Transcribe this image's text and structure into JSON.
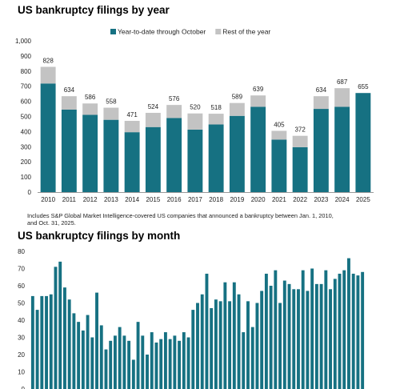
{
  "chart_data": [
    {
      "type": "bar",
      "stacked": true,
      "title": "US bankruptcy filings by year",
      "categories": [
        "2010",
        "2011",
        "2012",
        "2013",
        "2014",
        "2015",
        "2016",
        "2017",
        "2018",
        "2019",
        "2020",
        "2021",
        "2022",
        "2023",
        "2024",
        "2025"
      ],
      "series": [
        {
          "name": "Year-to-date through October",
          "color": "#167182",
          "values": [
            718,
            545,
            511,
            478,
            396,
            430,
            490,
            413,
            447,
            504,
            564,
            347,
            297,
            550,
            564,
            655
          ]
        },
        {
          "name": "Rest of the year",
          "color": "#c3c3c3",
          "values": [
            110,
            89,
            75,
            80,
            75,
            94,
            86,
            107,
            71,
            85,
            75,
            58,
            75,
            84,
            123,
            0
          ]
        }
      ],
      "totals": [
        828,
        634,
        586,
        558,
        471,
        524,
        576,
        520,
        518,
        589,
        639,
        405,
        372,
        634,
        687,
        655
      ],
      "ylim": [
        0,
        1000
      ],
      "yticks": [
        "0",
        "100",
        "200",
        "300",
        "400",
        "500",
        "600",
        "700",
        "800",
        "900",
        "1,000"
      ],
      "legend": "top-center",
      "grid": false,
      "note": [
        "Includes S&P Global Market Intelligence-covered US companies that announced a bankruptcy between Jan. 1, 2010,",
        "and Oct. 31, 2025."
      ]
    },
    {
      "type": "bar",
      "title": "US bankruptcy filings by month",
      "color": "#167182",
      "ylim": [
        0,
        80
      ],
      "yticks": [
        "0",
        "10",
        "20",
        "30",
        "40",
        "50",
        "60",
        "70",
        "80"
      ],
      "grid": false,
      "values": [
        54,
        46,
        54,
        54,
        55,
        71,
        74,
        59,
        52,
        44,
        39,
        34,
        43,
        30,
        56,
        37,
        23,
        28,
        31,
        36,
        31,
        28,
        17,
        39,
        31,
        20,
        33,
        27,
        29,
        33,
        29,
        31,
        28,
        33,
        30,
        46,
        50,
        55,
        67,
        47,
        52,
        51,
        62,
        51,
        62,
        55,
        33,
        51,
        36,
        50,
        57,
        67,
        60,
        69,
        50,
        63,
        61,
        58,
        58,
        69,
        57,
        70,
        61,
        61,
        69,
        58,
        64,
        67,
        69,
        76,
        67,
        66,
        68
      ]
    }
  ]
}
